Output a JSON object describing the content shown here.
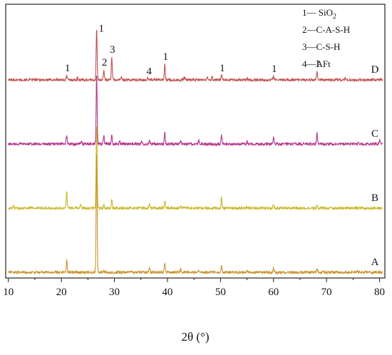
{
  "chart_data": {
    "type": "line",
    "xlabel": "2θ (°)",
    "xlim": [
      9.5,
      81
    ],
    "x_ticks": [
      "10",
      "20",
      "30",
      "40",
      "50",
      "60",
      "70",
      "80"
    ],
    "x_tick_values": [
      10,
      20,
      30,
      40,
      50,
      60,
      70,
      80
    ],
    "y_ticks_shown": false,
    "grid": false,
    "legend": {
      "placement": "top-right",
      "entries": [
        {
          "num": "1",
          "text": "— SiO",
          "sub": "2"
        },
        {
          "num": "2",
          "text": "—C-A-S-H",
          "sub": ""
        },
        {
          "num": "3",
          "text": "—C-S-H",
          "sub": ""
        },
        {
          "num": "4",
          "text": "—AFt",
          "sub": ""
        }
      ]
    },
    "peak_labels": [
      {
        "text": "1",
        "x": 21.0
      },
      {
        "text": "1",
        "x": 26.6
      },
      {
        "text": "2",
        "x": 28.0
      },
      {
        "text": "3",
        "x": 29.5
      },
      {
        "text": "4",
        "x": 36.4
      },
      {
        "text": "1",
        "x": 39.5
      },
      {
        "text": "1",
        "x": 50.2
      },
      {
        "text": "1",
        "x": 60.0
      },
      {
        "text": "1",
        "x": 68.2
      }
    ],
    "series": [
      {
        "name": "D",
        "color": "#c0504d",
        "offset": 2.7,
        "peaks": [
          [
            21.0,
            0.06
          ],
          [
            23.1,
            0.03
          ],
          [
            26.65,
            0.72
          ],
          [
            28.0,
            0.14
          ],
          [
            29.5,
            0.32
          ],
          [
            31.3,
            0.04
          ],
          [
            36.3,
            0.03
          ],
          [
            39.5,
            0.22
          ],
          [
            43.2,
            0.04
          ],
          [
            47.5,
            0.04
          ],
          [
            48.4,
            0.04
          ],
          [
            50.2,
            0.06
          ],
          [
            55.0,
            0.02
          ],
          [
            60.0,
            0.05
          ],
          [
            68.2,
            0.12
          ],
          [
            73.5,
            0.02
          ]
        ]
      },
      {
        "name": "C",
        "color": "#b5338f",
        "offset": 1.8,
        "peaks": [
          [
            21.0,
            0.12
          ],
          [
            23.8,
            0.05
          ],
          [
            26.65,
            1.0
          ],
          [
            28.0,
            0.12
          ],
          [
            29.5,
            0.13
          ],
          [
            31.0,
            0.04
          ],
          [
            35.1,
            0.03
          ],
          [
            36.6,
            0.06
          ],
          [
            39.5,
            0.16
          ],
          [
            42.5,
            0.05
          ],
          [
            45.9,
            0.05
          ],
          [
            50.2,
            0.13
          ],
          [
            55.0,
            0.04
          ],
          [
            60.0,
            0.1
          ],
          [
            68.2,
            0.15
          ],
          [
            76.0,
            0.04
          ],
          [
            80.0,
            0.05
          ]
        ]
      },
      {
        "name": "B",
        "color": "#c9b827",
        "offset": 0.9,
        "peaks": [
          [
            11.0,
            0.03
          ],
          [
            21.0,
            0.25
          ],
          [
            23.6,
            0.05
          ],
          [
            26.65,
            1.2
          ],
          [
            28.0,
            0.05
          ],
          [
            29.5,
            0.12
          ],
          [
            36.6,
            0.06
          ],
          [
            39.5,
            0.11
          ],
          [
            42.5,
            0.03
          ],
          [
            50.2,
            0.15
          ],
          [
            55.0,
            0.02
          ],
          [
            60.0,
            0.06
          ],
          [
            68.2,
            0.05
          ]
        ]
      },
      {
        "name": "A",
        "color": "#c8962e",
        "offset": 0.0,
        "peaks": [
          [
            21.0,
            0.18
          ],
          [
            26.65,
            1.75
          ],
          [
            28.0,
            0.02
          ],
          [
            36.6,
            0.07
          ],
          [
            39.5,
            0.12
          ],
          [
            42.5,
            0.05
          ],
          [
            45.9,
            0.04
          ],
          [
            50.2,
            0.11
          ],
          [
            55.0,
            0.03
          ],
          [
            60.0,
            0.07
          ],
          [
            68.2,
            0.05
          ],
          [
            75.8,
            0.02
          ]
        ]
      }
    ]
  }
}
